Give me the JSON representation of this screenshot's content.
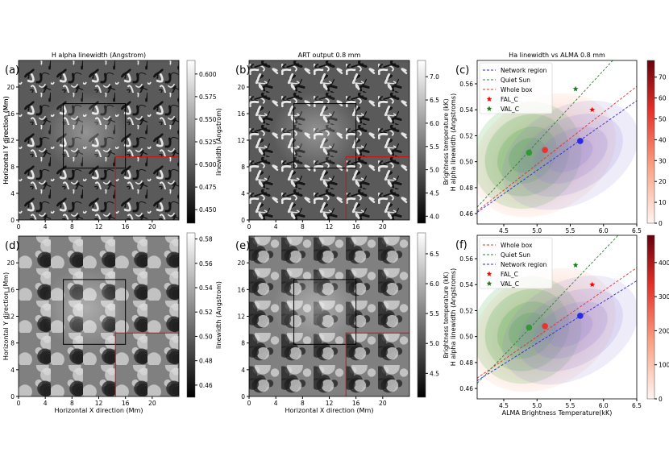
{
  "chart_data": [
    {
      "id": "a",
      "type": "heatmap",
      "panel_label": "(a)",
      "title": "H alpha linewidth (Angstrom)",
      "xlabel": "",
      "ylabel": "Horizontal Y direction (Mm)",
      "xticks": [
        "0",
        "4",
        "8",
        "12",
        "16",
        "20"
      ],
      "yticks": [
        "0",
        "4",
        "8",
        "12",
        "16",
        "20"
      ],
      "xlim": [
        0,
        24
      ],
      "ylim": [
        0,
        24
      ],
      "colorbar": {
        "label": "linewidth (Angstrom)",
        "ticks": [
          "0.450",
          "0.475",
          "0.500",
          "0.525",
          "0.550",
          "0.575",
          "0.600"
        ],
        "range": [
          0.435,
          0.615
        ],
        "cmap": "gray"
      },
      "black_box_mm": [
        6.7,
        7.8,
        16.0,
        17.5
      ],
      "red_box_mm": [
        14.5,
        0,
        24,
        9.5
      ]
    },
    {
      "id": "b",
      "type": "heatmap",
      "panel_label": "(b)",
      "title": "ART output 0.8 mm",
      "xlabel": "",
      "ylabel": "Horizontal Y direction (Mm)",
      "xticks": [
        "0",
        "4",
        "8",
        "12",
        "16",
        "20"
      ],
      "yticks": [
        "0",
        "4",
        "8",
        "12",
        "16",
        "20"
      ],
      "xlim": [
        0,
        24
      ],
      "ylim": [
        0,
        24
      ],
      "colorbar": {
        "label": "Brightness temperature (kK)",
        "ticks": [
          "4.0",
          "4.5",
          "5.0",
          "5.5",
          "6.0",
          "6.5",
          "7.0"
        ],
        "range": [
          3.85,
          7.35
        ],
        "cmap": "gray"
      },
      "black_box_mm": [
        6.7,
        7.8,
        16.0,
        17.5
      ],
      "red_box_mm": [
        14.5,
        0,
        24,
        9.5
      ]
    },
    {
      "id": "c",
      "type": "scatter",
      "panel_label": "(c)",
      "title": "Ha linewidth vs ALMA 0.8 mm",
      "xlabel": "",
      "ylabel": "H alpha linewidth (Angstroms)",
      "xticks": [
        "4.5",
        "5.0",
        "5.5",
        "6.0",
        "6.5"
      ],
      "yticks": [
        "0.46",
        "0.48",
        "0.50",
        "0.52",
        "0.54",
        "0.56"
      ],
      "xlim": [
        4.1,
        6.5
      ],
      "ylim": [
        0.452,
        0.578
      ],
      "legend_position": "top-left",
      "colorbar": {
        "ticks": [
          "0",
          "10",
          "20",
          "30",
          "40",
          "50",
          "60",
          "70"
        ],
        "range": [
          0,
          78
        ],
        "cmap": "reds"
      },
      "series": [
        {
          "name": "Network region",
          "type": "line",
          "style": "dashed",
          "color": "#2a2ad8",
          "x": [
            4.1,
            6.5
          ],
          "y": [
            0.461,
            0.547
          ]
        },
        {
          "name": "Quiet Sun",
          "type": "line",
          "style": "dashed",
          "color": "#3a7a3a",
          "x": [
            4.1,
            6.5
          ],
          "y": [
            0.465,
            0.598
          ]
        },
        {
          "name": "Whole box",
          "type": "line",
          "style": "dashed",
          "color": "#e03030",
          "x": [
            4.1,
            6.5
          ],
          "y": [
            0.462,
            0.558
          ]
        },
        {
          "name": "FAL_C",
          "type": "marker",
          "marker": "star",
          "color": "#ff0000",
          "x": [
            5.83
          ],
          "y": [
            0.54
          ]
        },
        {
          "name": "VAL_C",
          "type": "marker",
          "marker": "star",
          "color": "#207a20",
          "x": [
            5.58
          ],
          "y": [
            0.556
          ]
        }
      ],
      "means": [
        {
          "x": 4.88,
          "y": 0.507,
          "color": "#2f9a2f"
        },
        {
          "x": 5.12,
          "y": 0.509,
          "color": "#f03030"
        },
        {
          "x": 5.65,
          "y": 0.516,
          "color": "#2a2ae0"
        }
      ]
    },
    {
      "id": "d",
      "type": "heatmap",
      "panel_label": "(d)",
      "xlabel": "Horizontal X direction (Mm)",
      "ylabel": "Horizontal Y direction (Mm)",
      "xticks": [
        "0",
        "4",
        "8",
        "12",
        "16",
        "20"
      ],
      "yticks": [
        "0",
        "4",
        "8",
        "12",
        "16",
        "20"
      ],
      "xlim": [
        0,
        24
      ],
      "ylim": [
        0,
        24
      ],
      "colorbar": {
        "label": "linewidth (Angstrom)",
        "ticks": [
          "0.46",
          "0.48",
          "0.50",
          "0.52",
          "0.54",
          "0.56",
          "0.58"
        ],
        "range": [
          0.45,
          0.585
        ],
        "cmap": "gray"
      },
      "black_box_mm": [
        6.7,
        7.8,
        16.0,
        17.5
      ],
      "red_box_mm": [
        14.5,
        0,
        24,
        9.5
      ]
    },
    {
      "id": "e",
      "type": "heatmap",
      "panel_label": "(e)",
      "xlabel": "Horizontal X direction (Mm)",
      "ylabel": "",
      "xticks": [
        "0",
        "4",
        "8",
        "12",
        "16",
        "20"
      ],
      "yticks": [
        "0",
        "4",
        "8",
        "12",
        "16",
        "20"
      ],
      "xlim": [
        0,
        24
      ],
      "ylim": [
        0,
        24
      ],
      "colorbar": {
        "label": "Brightness temperature (kK)",
        "ticks": [
          "4.5",
          "5.0",
          "5.5",
          "6.0",
          "6.5"
        ],
        "range": [
          4.1,
          6.85
        ],
        "cmap": "gray"
      },
      "black_box_mm": [
        6.7,
        7.8,
        16.0,
        17.5
      ],
      "red_box_mm": [
        14.5,
        0,
        24,
        9.5
      ]
    },
    {
      "id": "f",
      "type": "scatter",
      "panel_label": "(f)",
      "xlabel": "ALMA Brightness Temperature(kK)",
      "ylabel": "H alpha linewidth (Angstroms)",
      "xticks": [
        "4.5",
        "5.0",
        "5.5",
        "6.0",
        "6.5"
      ],
      "yticks": [
        "0.46",
        "0.48",
        "0.50",
        "0.52",
        "0.54",
        "0.56"
      ],
      "xlim": [
        4.1,
        6.5
      ],
      "ylim": [
        0.452,
        0.578
      ],
      "legend_position": "top-left",
      "colorbar": {
        "ticks": [
          "0",
          "100",
          "200",
          "300",
          "400"
        ],
        "range": [
          0,
          480
        ],
        "cmap": "reds"
      },
      "series": [
        {
          "name": "Whole box",
          "type": "line",
          "style": "dashed",
          "color": "#e03030",
          "x": [
            4.1,
            6.5
          ],
          "y": [
            0.468,
            0.553
          ]
        },
        {
          "name": "Quiet Sun",
          "type": "line",
          "style": "dashed",
          "color": "#3a7a3a",
          "x": [
            4.1,
            6.5
          ],
          "y": [
            0.464,
            0.593
          ]
        },
        {
          "name": "Network region",
          "type": "line",
          "style": "dashed",
          "color": "#2a2ad8",
          "x": [
            4.1,
            6.5
          ],
          "y": [
            0.466,
            0.543
          ]
        },
        {
          "name": "FAL_C",
          "type": "marker",
          "marker": "star",
          "color": "#ff0000",
          "x": [
            5.83
          ],
          "y": [
            0.54
          ]
        },
        {
          "name": "VAL_C",
          "type": "marker",
          "marker": "star",
          "color": "#207a20",
          "x": [
            5.58
          ],
          "y": [
            0.555
          ]
        }
      ],
      "means": [
        {
          "x": 4.88,
          "y": 0.507,
          "color": "#2f9a2f"
        },
        {
          "x": 5.12,
          "y": 0.508,
          "color": "#f03030"
        },
        {
          "x": 5.65,
          "y": 0.516,
          "color": "#2a2ae0"
        }
      ]
    }
  ]
}
